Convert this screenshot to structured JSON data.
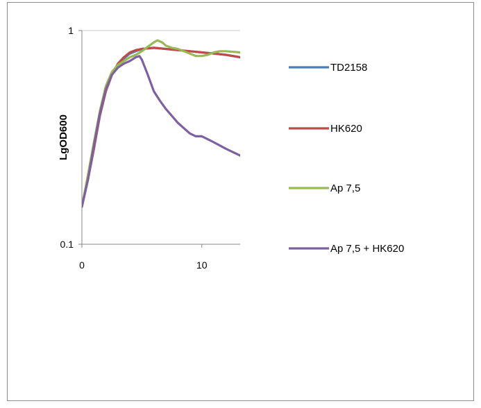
{
  "chart_data": {
    "type": "line",
    "title": "",
    "xlabel": "",
    "ylabel": "LgOD600",
    "yscale": "log",
    "xlim": [
      0,
      13.2
    ],
    "ylim": [
      0.1,
      1
    ],
    "x_ticks": [
      0,
      10
    ],
    "x_tick_labels": [
      "0",
      "10"
    ],
    "y_ticks": [
      0.1,
      1
    ],
    "y_tick_labels": [
      "0.1",
      "1"
    ],
    "grid": "horizontal",
    "legend": "right",
    "series": [
      {
        "name": "TD2158",
        "color": "#4a7ebb",
        "points": [
          [
            0,
            0.15
          ],
          [
            0.5,
            0.2
          ],
          [
            1,
            0.28
          ],
          [
            1.5,
            0.4
          ],
          [
            2,
            0.52
          ],
          [
            2.5,
            0.62
          ],
          [
            3,
            0.69
          ],
          [
            3.5,
            0.74
          ],
          [
            4,
            0.78
          ],
          [
            4.5,
            0.8
          ],
          [
            5,
            0.82
          ],
          [
            6,
            0.83
          ],
          [
            7,
            0.82
          ],
          [
            8,
            0.81
          ],
          [
            9,
            0.8
          ],
          [
            10,
            0.79
          ],
          [
            11,
            0.78
          ],
          [
            12,
            0.77
          ],
          [
            13.2,
            0.75
          ]
        ]
      },
      {
        "name": "HK620",
        "color": "#be4b48",
        "points": [
          [
            0,
            0.15
          ],
          [
            0.5,
            0.2
          ],
          [
            1,
            0.28
          ],
          [
            1.5,
            0.4
          ],
          [
            2,
            0.52
          ],
          [
            2.5,
            0.62
          ],
          [
            3,
            0.7
          ],
          [
            3.5,
            0.75
          ],
          [
            4,
            0.79
          ],
          [
            4.5,
            0.81
          ],
          [
            5,
            0.82
          ],
          [
            6,
            0.83
          ],
          [
            7,
            0.82
          ],
          [
            8,
            0.81
          ],
          [
            9,
            0.8
          ],
          [
            10,
            0.79
          ],
          [
            11,
            0.78
          ],
          [
            12,
            0.77
          ],
          [
            13.2,
            0.75
          ]
        ]
      },
      {
        "name": "Ap 7,5",
        "color": "#98b954",
        "points": [
          [
            0,
            0.15
          ],
          [
            0.5,
            0.21
          ],
          [
            1,
            0.3
          ],
          [
            1.5,
            0.42
          ],
          [
            2,
            0.55
          ],
          [
            2.5,
            0.64
          ],
          [
            3,
            0.69
          ],
          [
            3.5,
            0.72
          ],
          [
            4,
            0.75
          ],
          [
            4.5,
            0.77
          ],
          [
            5,
            0.8
          ],
          [
            5.5,
            0.84
          ],
          [
            6,
            0.88
          ],
          [
            6.3,
            0.9
          ],
          [
            6.7,
            0.88
          ],
          [
            7,
            0.85
          ],
          [
            7.5,
            0.83
          ],
          [
            8,
            0.82
          ],
          [
            8.5,
            0.8
          ],
          [
            9,
            0.78
          ],
          [
            9.5,
            0.76
          ],
          [
            10,
            0.76
          ],
          [
            10.5,
            0.77
          ],
          [
            11,
            0.79
          ],
          [
            11.5,
            0.8
          ],
          [
            12,
            0.8
          ],
          [
            13.2,
            0.79
          ]
        ]
      },
      {
        "name": "Ap 7,5 + HK620",
        "color": "#7d60a0",
        "points": [
          [
            0,
            0.15
          ],
          [
            0.5,
            0.2
          ],
          [
            1,
            0.29
          ],
          [
            1.5,
            0.41
          ],
          [
            2,
            0.53
          ],
          [
            2.5,
            0.62
          ],
          [
            3,
            0.67
          ],
          [
            3.5,
            0.7
          ],
          [
            4,
            0.72
          ],
          [
            4.5,
            0.75
          ],
          [
            4.8,
            0.76
          ],
          [
            5,
            0.73
          ],
          [
            5.5,
            0.62
          ],
          [
            6,
            0.52
          ],
          [
            6.5,
            0.47
          ],
          [
            7,
            0.43
          ],
          [
            8,
            0.37
          ],
          [
            9,
            0.33
          ],
          [
            9.5,
            0.32
          ],
          [
            10,
            0.32
          ],
          [
            10.5,
            0.31
          ],
          [
            11,
            0.3
          ],
          [
            12,
            0.28
          ],
          [
            13.2,
            0.26
          ]
        ]
      }
    ]
  }
}
